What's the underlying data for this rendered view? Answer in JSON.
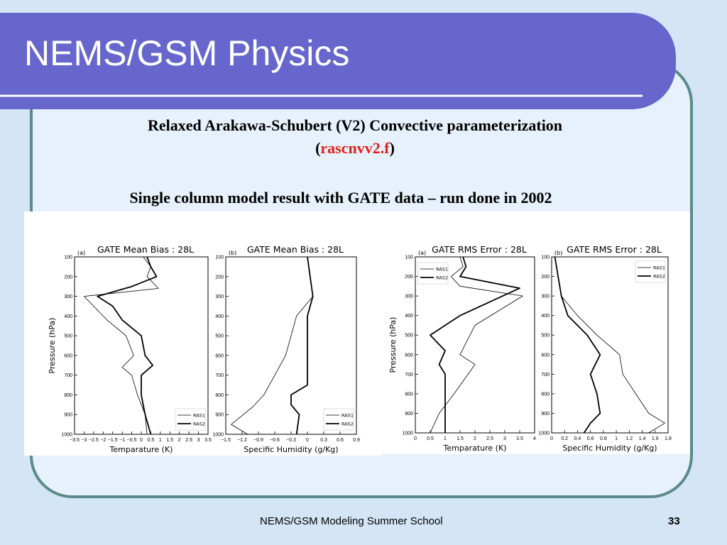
{
  "slide": {
    "title": "NEMS/GSM Physics",
    "subtitle_line1": "Relaxed Arakawa-Schubert (V2) Convective parameterization",
    "subtitle_code_open": "(",
    "subtitle_code": "rascnvv2.f",
    "subtitle_code_close": ")",
    "subtitle_line3": "Single column model result with GATE data – run done in 2002",
    "footer": "NEMS/GSM Modeling Summer School",
    "page_number": "33",
    "colors": {
      "banner": "#6666cc",
      "background": "#d4e6f6",
      "frame": "#5a8a8a",
      "accent_red": "#e0201a"
    }
  },
  "chart_data": [
    {
      "type": "line",
      "title": "GATE Mean Bias : 28L",
      "panel": "(a)",
      "xlabel": "Temparature (K)",
      "ylabel": "Pressure (hPa)",
      "xlim": [
        -3.5,
        3.5
      ],
      "ylim": [
        1000,
        100
      ],
      "xticks": [
        -3.5,
        -3,
        -2.5,
        -2,
        -1.5,
        -1,
        -0.5,
        0,
        0.5,
        1,
        1.5,
        2,
        2.5,
        3,
        3.5
      ],
      "xtick_labels": [
        "−3.5",
        "−3",
        "−2.5",
        "−2",
        "−1.5",
        "−1",
        "−0.5",
        "0",
        "0.5",
        "1",
        "1.5",
        "2",
        "2.5",
        "3",
        "3.5"
      ],
      "yticks": [
        100,
        200,
        300,
        400,
        500,
        600,
        700,
        800,
        900,
        1000
      ],
      "legend": "bottom-right",
      "series": [
        {
          "name": "RAS1",
          "style": "thin",
          "points": [
            [
              0.1,
              100
            ],
            [
              0.5,
              150
            ],
            [
              0.3,
              200
            ],
            [
              0.9,
              260
            ],
            [
              -3.0,
              300
            ],
            [
              -2.5,
              350
            ],
            [
              -1.8,
              420
            ],
            [
              -0.8,
              500
            ],
            [
              -0.4,
              600
            ],
            [
              -1.0,
              660
            ],
            [
              -0.5,
              700
            ],
            [
              -0.2,
              800
            ],
            [
              0.2,
              900
            ],
            [
              0.3,
              1000
            ]
          ]
        },
        {
          "name": "RAS2",
          "style": "thick",
          "points": [
            [
              0.3,
              100
            ],
            [
              0.5,
              150
            ],
            [
              0.8,
              200
            ],
            [
              -0.5,
              250
            ],
            [
              -2.3,
              300
            ],
            [
              -1.5,
              350
            ],
            [
              -1.0,
              420
            ],
            [
              0.0,
              500
            ],
            [
              0.2,
              600
            ],
            [
              0.6,
              650
            ],
            [
              0.0,
              700
            ],
            [
              0.0,
              800
            ],
            [
              0.2,
              900
            ],
            [
              0.5,
              1000
            ]
          ]
        }
      ]
    },
    {
      "type": "line",
      "title": "GATE Mean Bias : 28L",
      "panel": "(b)",
      "xlabel": "Specific Humidity (g/Kg)",
      "ylabel": "",
      "xlim": [
        -1.5,
        0.9
      ],
      "ylim": [
        1000,
        100
      ],
      "xticks": [
        -1.5,
        -1.2,
        -0.9,
        -0.6,
        -0.3,
        0,
        0.3,
        0.6,
        0.9
      ],
      "xtick_labels": [
        "−1.5",
        "−1.2",
        "−0.9",
        "−0.6",
        "−0.3",
        "0",
        "0.3",
        "0.6",
        "0.9"
      ],
      "yticks": [
        100,
        200,
        300,
        400,
        500,
        600,
        700,
        800,
        900,
        1000
      ],
      "legend": "bottom-right",
      "series": [
        {
          "name": "RAS1",
          "style": "thin",
          "points": [
            [
              0.0,
              100
            ],
            [
              0.05,
              200
            ],
            [
              0.1,
              300
            ],
            [
              -0.2,
              400
            ],
            [
              -0.3,
              500
            ],
            [
              -0.4,
              600
            ],
            [
              -0.6,
              700
            ],
            [
              -0.8,
              800
            ],
            [
              -1.0,
              860
            ],
            [
              -1.4,
              950
            ],
            [
              -1.1,
              1000
            ]
          ]
        },
        {
          "name": "RAS2",
          "style": "thick",
          "points": [
            [
              0.0,
              100
            ],
            [
              0.05,
              200
            ],
            [
              0.1,
              300
            ],
            [
              0.0,
              400
            ],
            [
              0.0,
              500
            ],
            [
              0.0,
              600
            ],
            [
              0.0,
              700
            ],
            [
              0.0,
              750
            ],
            [
              -0.3,
              800
            ],
            [
              -0.3,
              850
            ],
            [
              -0.15,
              900
            ],
            [
              -0.2,
              1000
            ]
          ]
        }
      ]
    },
    {
      "type": "line",
      "title": "GATE RMS Error : 28L",
      "panel": "(a)",
      "xlabel": "Temparature (K)",
      "ylabel": "Pressure (hPa)",
      "xlim": [
        0,
        4
      ],
      "ylim": [
        1000,
        100
      ],
      "xticks": [
        0,
        0.5,
        1,
        1.5,
        2,
        2.5,
        3,
        3.5,
        4
      ],
      "xtick_labels": [
        "0",
        "0.5",
        "1",
        "1.5",
        "2",
        "2.5",
        "3",
        "3.5",
        "4"
      ],
      "yticks": [
        100,
        200,
        300,
        400,
        500,
        600,
        700,
        800,
        900,
        1000
      ],
      "legend": "top-left",
      "series": [
        {
          "name": "RAS1",
          "style": "thin",
          "points": [
            [
              1.5,
              100
            ],
            [
              1.6,
              150
            ],
            [
              1.2,
              200
            ],
            [
              1.5,
              250
            ],
            [
              3.6,
              300
            ],
            [
              2.0,
              450
            ],
            [
              1.5,
              600
            ],
            [
              2.0,
              650
            ],
            [
              1.3,
              800
            ],
            [
              0.8,
              900
            ],
            [
              0.5,
              1000
            ]
          ]
        },
        {
          "name": "RAS2",
          "style": "thick",
          "points": [
            [
              1.6,
              100
            ],
            [
              1.7,
              150
            ],
            [
              1.5,
              200
            ],
            [
              3.5,
              260
            ],
            [
              1.5,
              400
            ],
            [
              0.5,
              500
            ],
            [
              1.0,
              580
            ],
            [
              0.8,
              650
            ],
            [
              1.0,
              700
            ],
            [
              1.0,
              800
            ],
            [
              1.0,
              900
            ],
            [
              1.0,
              1000
            ]
          ]
        }
      ]
    },
    {
      "type": "line",
      "title": "GATE RMS Error : 28L",
      "panel": "(b)",
      "xlabel": "Specific Humidity (g/Kg)",
      "ylabel": "",
      "xlim": [
        0,
        1.8
      ],
      "ylim": [
        1000,
        100
      ],
      "xticks": [
        0,
        0.2,
        0.4,
        0.6,
        0.8,
        1,
        1.2,
        1.4,
        1.6,
        1.8
      ],
      "xtick_labels": [
        "0",
        "0.2",
        "0.4",
        "0.6",
        "0.8",
        "1",
        "1.2",
        "1.4",
        "1.6",
        "1.8"
      ],
      "yticks": [
        100,
        200,
        300,
        400,
        500,
        600,
        700,
        800,
        900,
        1000
      ],
      "legend": "top-right",
      "series": [
        {
          "name": "RAS1",
          "style": "thin",
          "points": [
            [
              0.05,
              100
            ],
            [
              0.1,
              200
            ],
            [
              0.15,
              300
            ],
            [
              0.4,
              400
            ],
            [
              0.7,
              500
            ],
            [
              1.05,
              600
            ],
            [
              1.1,
              700
            ],
            [
              1.3,
              800
            ],
            [
              1.5,
              900
            ],
            [
              1.75,
              950
            ],
            [
              1.5,
              1000
            ]
          ]
        },
        {
          "name": "RAS2",
          "style": "thick",
          "points": [
            [
              0.05,
              100
            ],
            [
              0.1,
              200
            ],
            [
              0.15,
              300
            ],
            [
              0.25,
              400
            ],
            [
              0.55,
              500
            ],
            [
              0.75,
              600
            ],
            [
              0.6,
              700
            ],
            [
              0.7,
              800
            ],
            [
              0.75,
              900
            ],
            [
              0.6,
              950
            ],
            [
              0.5,
              1000
            ]
          ]
        }
      ]
    }
  ]
}
